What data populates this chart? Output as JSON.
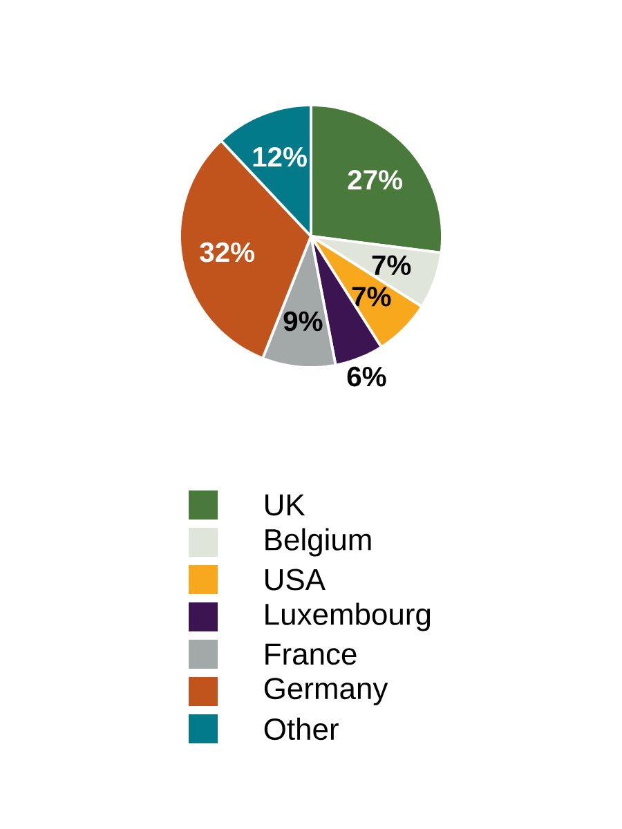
{
  "chart_data": {
    "type": "pie",
    "categories": [
      "UK",
      "Belgium",
      "USA",
      "Luxembourg",
      "France",
      "Germany",
      "Other"
    ],
    "values": [
      27,
      7,
      7,
      6,
      9,
      32,
      12
    ],
    "colors": [
      "#4a7a3b",
      "#dfe6d9",
      "#f8a81c",
      "#3d1452",
      "#a3a8a9",
      "#c0541c",
      "#027a8a"
    ],
    "value_labels": [
      "27%",
      "7%",
      "7%",
      "6%",
      "9%",
      "32%",
      "12%"
    ],
    "legend": "bottom"
  }
}
